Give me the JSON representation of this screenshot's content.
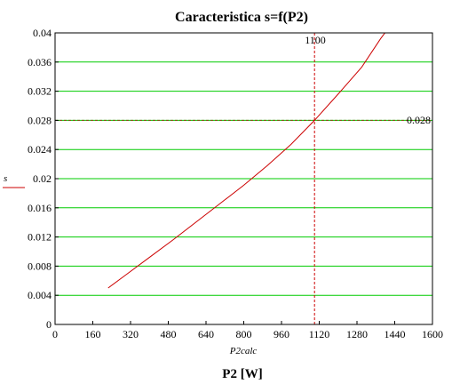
{
  "chart_data": {
    "type": "line",
    "title": "Caracteristica s=f(P2)",
    "xlabel": "P2 [W]",
    "x_variable": "P2calc",
    "ylabel": "s",
    "xlim": [
      0,
      1600
    ],
    "ylim": [
      0,
      0.04
    ],
    "x_ticks": [
      "0",
      "160",
      "320",
      "480",
      "640",
      "800",
      "960",
      "1120",
      "1280",
      "1440",
      "1600"
    ],
    "y_ticks": [
      "0",
      "0.004",
      "0.008",
      "0.012",
      "0.016",
      "0.02",
      "0.024",
      "0.028",
      "0.032",
      "0.036",
      "0.04"
    ],
    "grid": "horizontal",
    "series": [
      {
        "name": "s",
        "color": "#cc0000",
        "x": [
          225,
          300,
          400,
          500,
          600,
          700,
          800,
          900,
          1000,
          1100,
          1200,
          1300,
          1380,
          1410
        ],
        "y": [
          0.005,
          0.0068,
          0.0092,
          0.0116,
          0.0141,
          0.0166,
          0.0191,
          0.0218,
          0.0247,
          0.028,
          0.0316,
          0.0353,
          0.0392,
          0.0405
        ]
      }
    ],
    "markers": {
      "vertical": {
        "x": 1100,
        "label": "1100",
        "color": "#cc0000"
      },
      "horizontal": {
        "y": 0.028,
        "label": "0.028",
        "color": "#8b4513"
      }
    },
    "colors": {
      "grid": "#00cc00",
      "frame": "#000000",
      "curve": "#cc0000"
    }
  }
}
